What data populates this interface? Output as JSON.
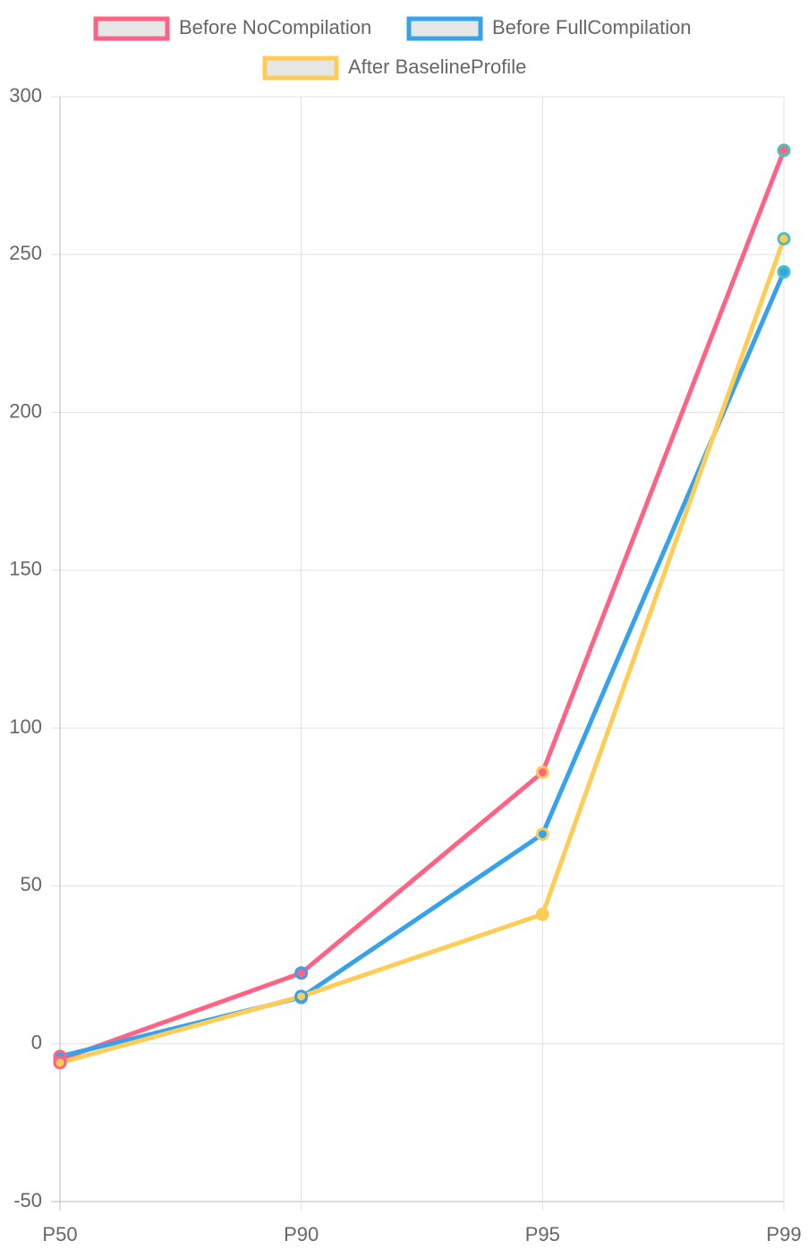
{
  "chart_data": {
    "type": "line",
    "categories": [
      "P50",
      "P90",
      "P95",
      "P99"
    ],
    "series": [
      {
        "name": "Before NoCompilation",
        "color": "#ff6384",
        "values": [
          -5,
          22.4,
          86,
          283
        ]
      },
      {
        "name": "Before FullCompilation",
        "color": "#36a2eb",
        "values": [
          -4,
          14.7,
          66.4,
          244.5
        ]
      },
      {
        "name": "After BaselineProfile",
        "color": "#ffcd56",
        "values": [
          -6,
          15,
          41,
          255
        ]
      }
    ],
    "point_colors": [
      "#ff6384",
      "#36a2eb",
      "#ffcd56",
      "#4bc0c0"
    ],
    "ylim": [
      -50,
      300
    ],
    "yticks": [
      -50,
      0,
      50,
      100,
      150,
      200,
      250,
      300
    ],
    "grid": true
  }
}
